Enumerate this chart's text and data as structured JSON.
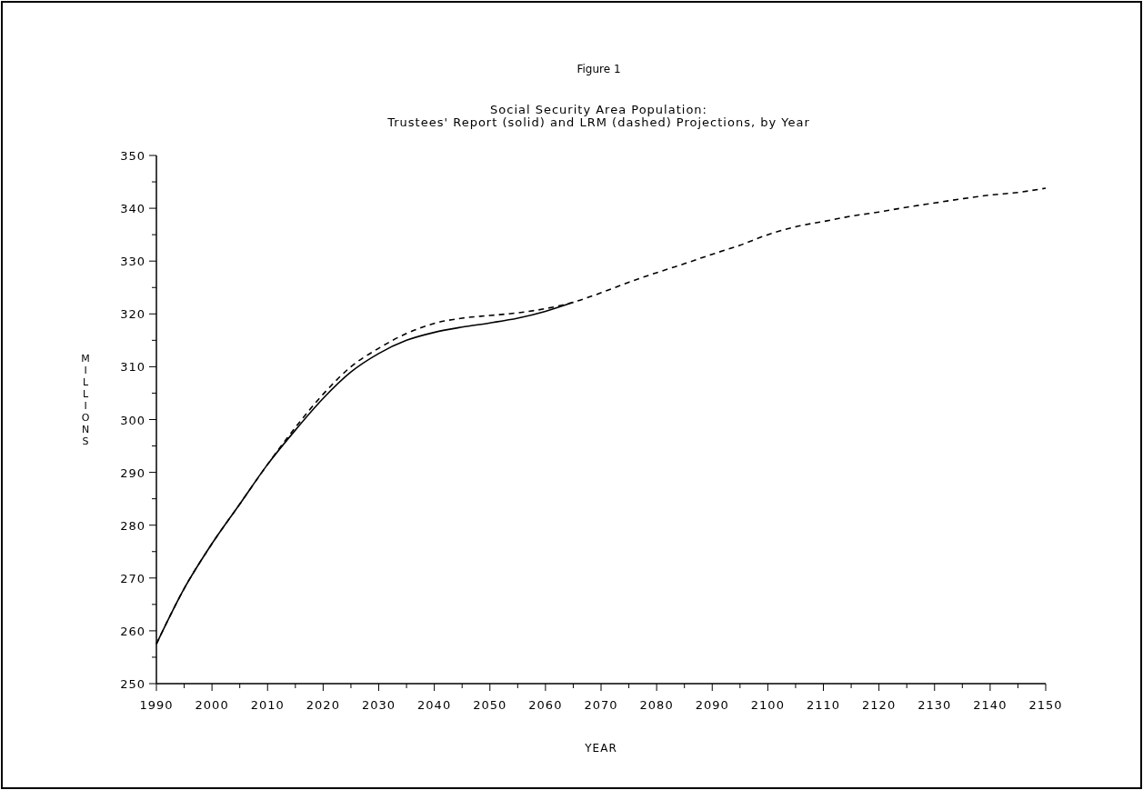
{
  "chart_data": {
    "type": "line",
    "title": "Figure 1",
    "subtitle": "Social Security Area Population:\nTrustees' Report (solid) and LRM (dashed) Projections, by Year",
    "xlabel": "YEAR",
    "ylabel": "MILLIONS",
    "xlim": [
      1990,
      2150
    ],
    "ylim": [
      250,
      350
    ],
    "xticks": [
      1990,
      {
        "value": 1995,
        "label": null
      },
      2000,
      {
        "value": 2005,
        "label": null
      },
      2010,
      {
        "value": 2015,
        "label": null
      },
      2020,
      {
        "value": 2025,
        "label": null
      },
      2030,
      {
        "value": 2035,
        "label": null
      },
      2040,
      {
        "value": 2045,
        "label": null
      },
      2050,
      {
        "value": 2055,
        "label": null
      },
      2060,
      {
        "value": 2065,
        "label": null
      },
      2070,
      {
        "value": 2075,
        "label": null
      },
      2080,
      {
        "value": 2085,
        "label": null
      },
      2090,
      {
        "value": 2095,
        "label": null
      },
      2100,
      {
        "value": 2105,
        "label": null
      },
      2110,
      {
        "value": 2115,
        "label": null
      },
      2120,
      {
        "value": 2125,
        "label": null
      },
      2130,
      {
        "value": 2135,
        "label": null
      },
      2140,
      {
        "value": 2145,
        "label": null
      },
      2150
    ],
    "yticks": [
      250,
      {
        "value": 255,
        "label": null
      },
      260,
      {
        "value": 265,
        "label": null
      },
      270,
      {
        "value": 275,
        "label": null
      },
      280,
      {
        "value": 285,
        "label": null
      },
      290,
      {
        "value": 295,
        "label": null
      },
      300,
      {
        "value": 305,
        "label": null
      },
      310,
      {
        "value": 315,
        "label": null
      },
      320,
      {
        "value": 325,
        "label": null
      },
      330,
      {
        "value": 335,
        "label": null
      },
      340,
      {
        "value": 345,
        "label": null
      },
      350
    ],
    "grid": false,
    "series": [
      {
        "color": "#000000",
        "line_style": "solid",
        "x": [
          1990,
          1995,
          2000,
          2005,
          2010,
          2015,
          2020,
          2025,
          2030,
          2035,
          2040,
          2045,
          2050,
          2055,
          2060,
          2065
        ],
        "values": [
          257.5,
          268,
          276.5,
          284,
          291.5,
          298,
          304,
          309,
          312.5,
          315,
          316.5,
          317.5,
          318.3,
          319.2,
          320.5,
          322.2
        ]
      },
      {
        "color": "#000000",
        "line_style": "dashed",
        "x": [
          1990,
          1995,
          2000,
          2005,
          2010,
          2015,
          2020,
          2025,
          2030,
          2035,
          2040,
          2045,
          2050,
          2055,
          2060,
          2065,
          2070,
          2075,
          2080,
          2085,
          2090,
          2095,
          2100,
          2105,
          2110,
          2115,
          2120,
          2125,
          2130,
          2135,
          2140,
          2145,
          2150
        ],
        "values": [
          257.5,
          268,
          276.5,
          284,
          291.5,
          298.5,
          304.8,
          310,
          313.5,
          316.3,
          318.2,
          319.2,
          319.7,
          320.2,
          321,
          322.2,
          324,
          326,
          327.8,
          329.5,
          331.3,
          333,
          335,
          336.5,
          337.5,
          338.5,
          339.3,
          340.2,
          341,
          341.8,
          342.5,
          343,
          343.8
        ]
      }
    ]
  }
}
